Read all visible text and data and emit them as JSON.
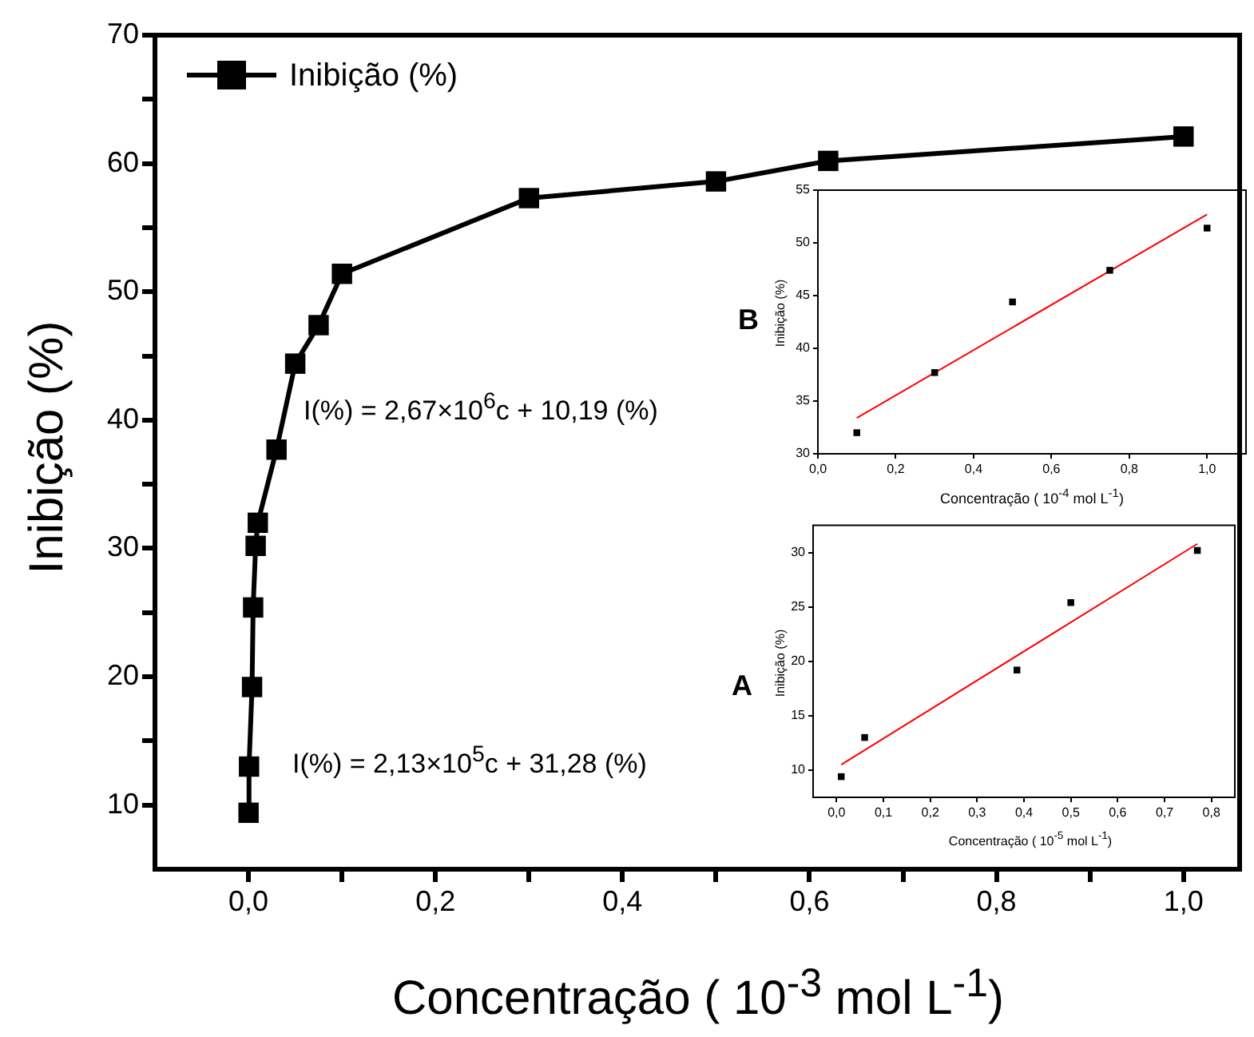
{
  "chart_data": [
    {
      "type": "line",
      "xlabel": "Concentração ( 10$^{-3}$ mol L$^{-1}$)",
      "ylabel": "Inibição (%)",
      "marker": "square",
      "legend": "top left",
      "x": [
        0.0001,
        0.0006,
        0.00385,
        0.005,
        0.0077,
        0.01,
        0.03,
        0.05,
        0.075,
        0.1,
        0.3,
        0.5,
        0.62,
        1.0
      ],
      "series": [
        {
          "name": "Inibição (%)",
          "color": "#000000",
          "values": [
            9.4,
            13,
            19.2,
            25.4,
            30.2,
            32,
            37.7,
            44.4,
            47.4,
            51.4,
            57.3,
            58.6,
            60.2,
            62.1
          ]
        }
      ],
      "xlim": [
        -0.1,
        1.06
      ],
      "ylim": [
        5,
        70
      ],
      "xticks": [
        {
          "value": 0,
          "label": "0,0"
        },
        {
          "value": 0.1,
          "label": null
        },
        {
          "value": 0.2,
          "label": "0,2"
        },
        {
          "value": 0.3,
          "label": null
        },
        {
          "value": 0.4,
          "label": "0,4"
        },
        {
          "value": 0.5,
          "label": null
        },
        {
          "value": 0.6,
          "label": "0,6"
        },
        {
          "value": 0.7,
          "label": null
        },
        {
          "value": 0.8,
          "label": "0,8"
        },
        {
          "value": 0.9,
          "label": null
        },
        {
          "value": 1,
          "label": "1,0"
        }
      ],
      "yticks": [
        10,
        {
          "value": 15,
          "label": null
        },
        20,
        {
          "value": 25,
          "label": null
        },
        30,
        {
          "value": 35,
          "label": null
        },
        40,
        {
          "value": 45,
          "label": null
        },
        50,
        {
          "value": 55,
          "label": null
        },
        60,
        {
          "value": 65,
          "label": null
        },
        70
      ],
      "annotations": [
        "I(%) = 2,67×10$^{6}$c + 10,19 (%)",
        "I(%) = 2,13×10$^{5}$c + 31,28 (%)"
      ]
    },
    {
      "type": "scatter",
      "xlabel": "Concentração ( 10$^{-4}$ mol L$^{-1}$)",
      "ylabel": "Inibição (%)",
      "marker": "square",
      "series": [
        {
          "type": "scatter",
          "color": "#000000",
          "x": [
            0.1,
            0.3,
            0.5,
            0.75,
            1.0
          ],
          "values": [
            32,
            37.7,
            44.4,
            47.4,
            51.4
          ]
        },
        {
          "type": "line",
          "color": "#ff0000",
          "marker": "none",
          "x": [
            0.1,
            1.0
          ],
          "values": [
            33.4,
            52.7
          ]
        }
      ],
      "xlim": [
        0,
        1.1
      ],
      "ylim": [
        30,
        55
      ],
      "xticks": [
        {
          "value": 0,
          "label": "0,0"
        },
        {
          "value": 0.2,
          "label": "0,2"
        },
        {
          "value": 0.4,
          "label": "0,4"
        },
        {
          "value": 0.6,
          "label": "0,6"
        },
        {
          "value": 0.8,
          "label": "0,8"
        },
        {
          "value": 1,
          "label": "1,0"
        }
      ],
      "yticks": [
        30,
        35,
        40,
        45,
        50,
        55
      ],
      "annotations": [
        "B"
      ]
    },
    {
      "type": "scatter",
      "xlabel": "Concentração ( 10$^{-5}$ mol L$^{-1}$)",
      "ylabel": "Inibição (%)",
      "marker": "square",
      "series": [
        {
          "type": "scatter",
          "color": "#000000",
          "x": [
            0.01,
            0.06,
            0.385,
            0.5,
            0.77
          ],
          "values": [
            9.4,
            13,
            19.2,
            25.4,
            30.2
          ]
        },
        {
          "type": "line",
          "color": "#ff0000",
          "marker": "none",
          "x": [
            0.01,
            0.77
          ],
          "values": [
            10.5,
            30.8
          ]
        }
      ],
      "xlim": [
        -0.05,
        0.85
      ],
      "ylim": [
        7.5,
        32.5
      ],
      "xticks": [
        {
          "value": 0,
          "label": "0,0"
        },
        {
          "value": 0.1,
          "label": "0,1"
        },
        {
          "value": 0.2,
          "label": "0,2"
        },
        {
          "value": 0.3,
          "label": "0,3"
        },
        {
          "value": 0.4,
          "label": "0,4"
        },
        {
          "value": 0.5,
          "label": "0,5"
        },
        {
          "value": 0.6,
          "label": "0,6"
        },
        {
          "value": 0.7,
          "label": "0,7"
        },
        {
          "value": 0.8,
          "label": "0,8"
        }
      ],
      "yticks": [
        10,
        15,
        20,
        25,
        30
      ],
      "annotations": [
        "A"
      ]
    }
  ]
}
